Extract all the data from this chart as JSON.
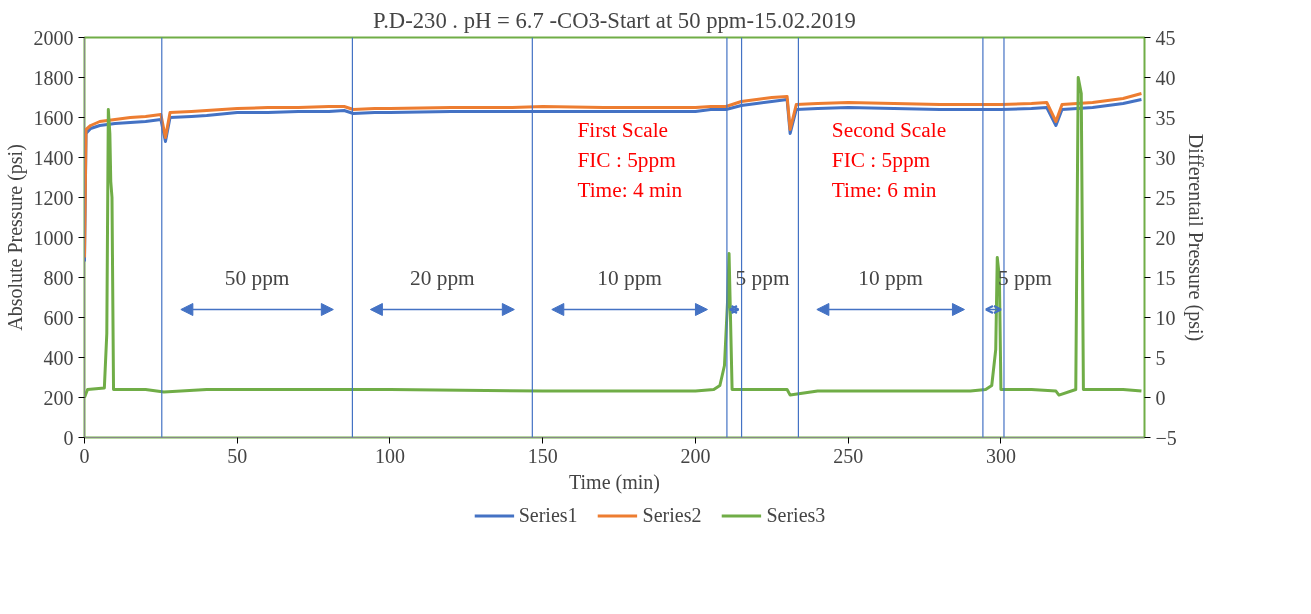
{
  "chart_data": {
    "type": "line",
    "title": "P.D-230 . pH = 6.7 -CO3-Start at 50 ppm-15.02.2019",
    "xlabel": "Time (min)",
    "ylabel": "Absolute Pressure (psi)",
    "y2label": "Differentail Pressure (psi)",
    "xlim": [
      0,
      347
    ],
    "xticks": [
      0,
      50,
      100,
      150,
      200,
      250,
      300
    ],
    "ylim": [
      0,
      2000
    ],
    "yticks": [
      0,
      200,
      400,
      600,
      800,
      1000,
      1200,
      1400,
      1600,
      1800,
      2000
    ],
    "y2lim": [
      -5,
      45
    ],
    "y2ticks": [
      -5,
      0,
      5,
      10,
      15,
      20,
      25,
      30,
      35,
      40,
      45
    ],
    "x": [
      0,
      0.5,
      2,
      5,
      10,
      15,
      20,
      25,
      26.5,
      28,
      35,
      40,
      50,
      60,
      70,
      80,
      85,
      88,
      95,
      100,
      120,
      140,
      150,
      170,
      190,
      200,
      205,
      210,
      215,
      220,
      225,
      230,
      231,
      233,
      240,
      250,
      265,
      280,
      290,
      300,
      310,
      315,
      318,
      320,
      325,
      330,
      335,
      340,
      346
    ],
    "series": [
      {
        "name": "Series1",
        "color": "#4472c4",
        "values": [
          880,
          1520,
          1545,
          1560,
          1570,
          1575,
          1580,
          1590,
          1480,
          1600,
          1605,
          1610,
          1625,
          1625,
          1630,
          1630,
          1635,
          1620,
          1625,
          1625,
          1630,
          1630,
          1630,
          1630,
          1630,
          1630,
          1640,
          1640,
          1660,
          1670,
          1680,
          1690,
          1520,
          1640,
          1645,
          1650,
          1645,
          1640,
          1640,
          1640,
          1645,
          1650,
          1560,
          1640,
          1645,
          1650,
          1660,
          1670,
          1690
        ]
      },
      {
        "name": "Series2",
        "color": "#ed7d31",
        "values": [
          900,
          1540,
          1560,
          1580,
          1590,
          1600,
          1605,
          1615,
          1500,
          1625,
          1630,
          1635,
          1645,
          1650,
          1650,
          1655,
          1655,
          1640,
          1645,
          1645,
          1650,
          1650,
          1655,
          1650,
          1650,
          1650,
          1655,
          1655,
          1680,
          1690,
          1700,
          1705,
          1540,
          1665,
          1670,
          1675,
          1670,
          1665,
          1665,
          1665,
          1670,
          1675,
          1580,
          1665,
          1670,
          1675,
          1685,
          1695,
          1720
        ]
      },
      {
        "name": "Series3",
        "color": "#70ad47",
        "axis": "y2",
        "x": [
          0,
          1,
          6.5,
          7.3,
          7.8,
          8.3,
          8.6,
          9.0,
          9.5,
          20,
          26,
          40,
          100,
          150,
          200,
          206,
          208,
          209.5,
          210.5,
          211,
          212,
          230,
          231,
          240,
          290,
          295,
          297,
          298.3,
          298.8,
          299.5,
          300,
          310,
          318,
          319,
          324.5,
          325.3,
          326.3,
          327,
          340,
          346
        ],
        "values": [
          0,
          1,
          1.2,
          8,
          36,
          33,
          27,
          25,
          1,
          1,
          0.7,
          1,
          1,
          0.8,
          0.8,
          1,
          1.5,
          4,
          12,
          18,
          1,
          1,
          0.3,
          0.8,
          0.8,
          1,
          1.5,
          6,
          17.5,
          15,
          1,
          1,
          0.8,
          0.3,
          1,
          40,
          38,
          1,
          1,
          0.8
        ]
      }
    ],
    "ref_lines": [
      {
        "axis": "x",
        "value": 25.3,
        "label": null,
        "color": "#4472c4"
      },
      {
        "axis": "x",
        "value": 87.7,
        "label": null,
        "color": "#4472c4"
      },
      {
        "axis": "x",
        "value": 146.6,
        "label": null,
        "color": "#4472c4"
      },
      {
        "axis": "x",
        "value": 210.3,
        "label": null,
        "color": "#4472c4"
      },
      {
        "axis": "x",
        "value": 215.1,
        "label": null,
        "color": "#4472c4"
      },
      {
        "axis": "x",
        "value": 233.7,
        "label": null,
        "color": "#4472c4"
      },
      {
        "axis": "x",
        "value": 294.1,
        "label": null,
        "color": "#4472c4"
      },
      {
        "axis": "x",
        "value": 301,
        "label": null,
        "color": "#4472c4"
      }
    ],
    "annotations": [
      "50 ppm",
      "20 ppm",
      "10 ppm",
      "5 ppm",
      "10 ppm",
      "5 ppm",
      "First Scale\nFIC : 5ppm\nTime: 4 min",
      "Second Scale\nFIC : 5ppm\nTime: 6 min"
    ],
    "legend": "bottom",
    "grid": false,
    "marker": "none",
    "line_style": "solid"
  }
}
